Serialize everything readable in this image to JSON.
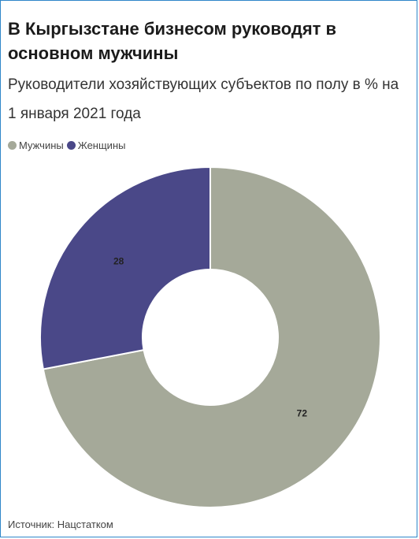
{
  "title": "В Кыргызстане бизнесом руководят в основном мужчины",
  "subtitle": "Руководители хозяйствующих субъектов по полу в % на 1 января 2021 года",
  "source": "Источник: Нацстатком",
  "chart_data": {
    "type": "pie",
    "donut": true,
    "title": "В Кыргызстане бизнесом руководят в основном мужчины",
    "subtitle": "Руководители хозяйствующих субъектов по полу в % на 1 января 2021 года",
    "legend_position": "top-left",
    "categories": [
      "Мужчины",
      "Женщины"
    ],
    "values": [
      72,
      28
    ],
    "colors": [
      "#a5a999",
      "#4a4888"
    ],
    "data_labels": [
      "72",
      "28"
    ]
  }
}
